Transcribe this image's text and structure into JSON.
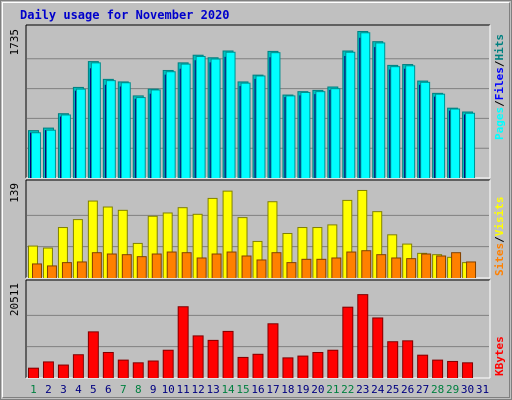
{
  "title": "Daily usage for November 2020",
  "colors": {
    "hits": "#00c0c0",
    "hits_dark": "#008080",
    "files": "#0000ff",
    "files_dark": "#000080",
    "pages": "#00ffff",
    "pages_dark": "#009090",
    "visits": "#ffff00",
    "sites": "#ff8000",
    "kbytes": "#ff0000",
    "weekend_label": "#008040",
    "weekday_label": "#000080",
    "panel_bg": "#c0c0c0",
    "grid": "#808080"
  },
  "chart_data": [
    {
      "type": "bar",
      "name_key": "top",
      "ymax_label": "1735",
      "ylim": [
        0,
        1735
      ],
      "series_labels": [
        "Pages",
        "/",
        "Files",
        "/",
        "Hits"
      ],
      "categories": [
        "1",
        "2",
        "3",
        "4",
        "5",
        "6",
        "7",
        "8",
        "9",
        "10",
        "11",
        "12",
        "13",
        "14",
        "15",
        "16",
        "17",
        "18",
        "19",
        "20",
        "21",
        "22",
        "23",
        "24",
        "25",
        "26",
        "27",
        "28",
        "29",
        "30"
      ],
      "series": [
        {
          "name": "Hits",
          "values": [
            565,
            595,
            765,
            1075,
            1380,
            1170,
            1140,
            975,
            1055,
            1275,
            1365,
            1455,
            1425,
            1505,
            1140,
            1220,
            1500,
            985,
            1025,
            1040,
            1080,
            1505,
            1735,
            1615,
            1335,
            1345,
            1150,
            1005,
            830,
            785
          ]
        },
        {
          "name": "Files",
          "values": [
            535,
            565,
            725,
            1030,
            1295,
            1100,
            1080,
            935,
            995,
            1220,
            1290,
            1390,
            1365,
            1430,
            1085,
            1170,
            1425,
            955,
            975,
            990,
            1040,
            1440,
            1655,
            1545,
            1280,
            1290,
            1100,
            960,
            795,
            750
          ]
        },
        {
          "name": "Pages",
          "values": [
            540,
            570,
            750,
            1055,
            1365,
            1155,
            1130,
            955,
            1045,
            1260,
            1350,
            1440,
            1410,
            1490,
            1125,
            1210,
            1485,
            975,
            1015,
            1025,
            1060,
            1490,
            1720,
            1600,
            1320,
            1330,
            1135,
            995,
            820,
            770
          ]
        }
      ]
    },
    {
      "type": "bar",
      "name_key": "middle",
      "ymax_label": "139",
      "ylim": [
        0,
        139
      ],
      "series_labels": [
        "Sites",
        "/",
        "Visits"
      ],
      "categories": [
        "1",
        "2",
        "3",
        "4",
        "5",
        "6",
        "7",
        "8",
        "9",
        "10",
        "11",
        "12",
        "13",
        "14",
        "15",
        "16",
        "17",
        "18",
        "19",
        "20",
        "21",
        "22",
        "23",
        "24",
        "25",
        "26",
        "27",
        "28",
        "29",
        "30"
      ],
      "series": [
        {
          "name": "Visits",
          "values": [
            49,
            46,
            77,
            89,
            117,
            108,
            103,
            53,
            94,
            99,
            107,
            97,
            121,
            132,
            92,
            56,
            116,
            68,
            77,
            77,
            81,
            118,
            133,
            101,
            66,
            52,
            38,
            36,
            32,
            24
          ]
        },
        {
          "name": "Sites",
          "values": [
            22,
            19,
            24,
            25,
            39,
            37,
            36,
            33,
            37,
            40,
            39,
            31,
            37,
            40,
            34,
            28,
            39,
            24,
            29,
            29,
            31,
            40,
            42,
            36,
            31,
            30,
            37,
            34,
            39,
            25
          ]
        }
      ]
    },
    {
      "type": "bar",
      "name_key": "bottom",
      "ymax_label": "20511",
      "ylim": [
        0,
        20511
      ],
      "series_labels": [
        "KBytes"
      ],
      "categories": [
        "1",
        "2",
        "3",
        "4",
        "5",
        "6",
        "7",
        "8",
        "9",
        "10",
        "11",
        "12",
        "13",
        "14",
        "15",
        "16",
        "17",
        "18",
        "19",
        "20",
        "21",
        "22",
        "23",
        "24",
        "25",
        "26",
        "27",
        "28",
        "29",
        "30"
      ],
      "series": [
        {
          "name": "KBytes",
          "values": [
            2300,
            3700,
            3000,
            5300,
            10400,
            5800,
            4100,
            3500,
            3900,
            6300,
            16000,
            9500,
            8500,
            10500,
            4700,
            5400,
            12200,
            4600,
            5000,
            5800,
            6300,
            15900,
            18700,
            13500,
            8200,
            8400,
            5200,
            4100,
            3800,
            3500
          ]
        }
      ]
    }
  ],
  "x_labels": [
    {
      "text": "1",
      "weekend": true
    },
    {
      "text": "2",
      "weekend": false
    },
    {
      "text": "3",
      "weekend": false
    },
    {
      "text": "4",
      "weekend": false
    },
    {
      "text": "5",
      "weekend": false
    },
    {
      "text": "6",
      "weekend": false
    },
    {
      "text": "7",
      "weekend": true
    },
    {
      "text": "8",
      "weekend": true
    },
    {
      "text": "9",
      "weekend": false
    },
    {
      "text": "10",
      "weekend": false
    },
    {
      "text": "11",
      "weekend": false
    },
    {
      "text": "12",
      "weekend": false
    },
    {
      "text": "13",
      "weekend": false
    },
    {
      "text": "14",
      "weekend": true
    },
    {
      "text": "15",
      "weekend": true
    },
    {
      "text": "16",
      "weekend": false
    },
    {
      "text": "17",
      "weekend": false
    },
    {
      "text": "18",
      "weekend": false
    },
    {
      "text": "19",
      "weekend": false
    },
    {
      "text": "20",
      "weekend": false
    },
    {
      "text": "21",
      "weekend": true
    },
    {
      "text": "22",
      "weekend": true
    },
    {
      "text": "23",
      "weekend": false
    },
    {
      "text": "24",
      "weekend": false
    },
    {
      "text": "25",
      "weekend": false
    },
    {
      "text": "26",
      "weekend": false
    },
    {
      "text": "27",
      "weekend": false
    },
    {
      "text": "28",
      "weekend": true
    },
    {
      "text": "29",
      "weekend": true
    },
    {
      "text": "30",
      "weekend": false
    },
    {
      "text": "31",
      "weekend": false
    }
  ]
}
